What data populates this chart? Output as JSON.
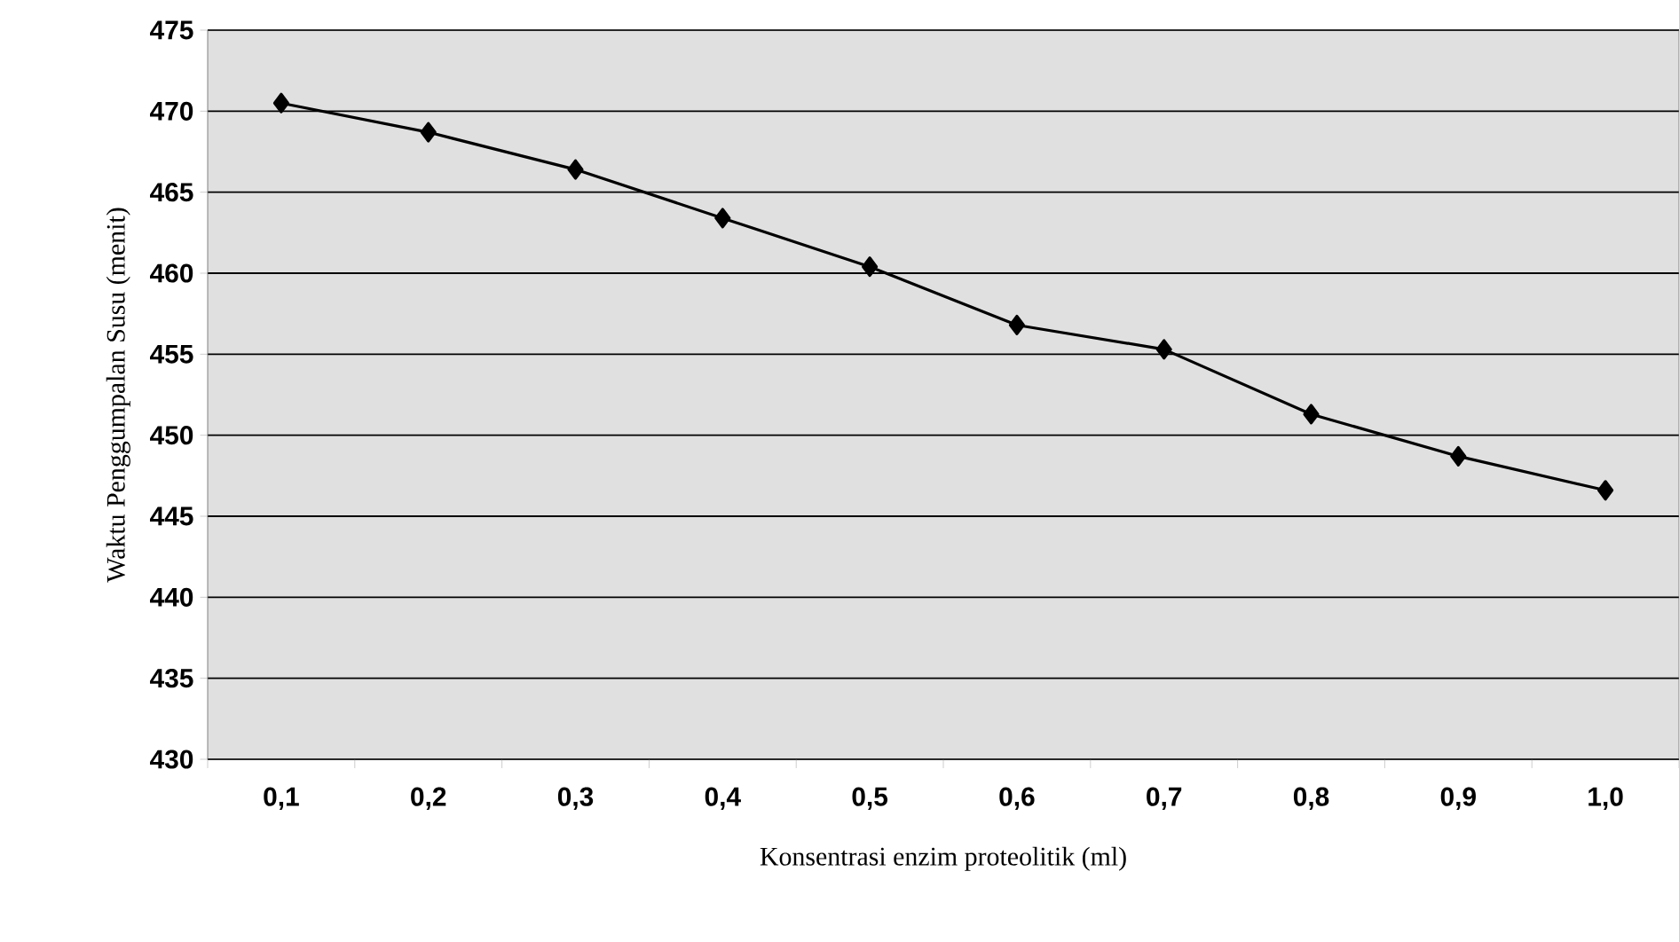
{
  "chart_data": {
    "type": "line",
    "xlabel": "Konsentrasi enzim proteolitik (ml)",
    "ylabel": "Waktu Penggumpalan Susu (menit)",
    "categories": [
      "0,1",
      "0,2",
      "0,3",
      "0,4",
      "0,5",
      "0,6",
      "0,7",
      "0,8",
      "0,9",
      "1,0"
    ],
    "series": [
      {
        "color": "#000000",
        "values": [
          470.5,
          468.7,
          466.4,
          463.4,
          460.4,
          456.8,
          455.3,
          451.3,
          448.7,
          446.6
        ]
      }
    ],
    "ylim": [
      430,
      475
    ],
    "yticks": [
      430,
      435,
      440,
      445,
      450,
      455,
      460,
      465,
      470,
      475
    ],
    "grid": "y",
    "marker": "diamond",
    "line_style": "solid"
  }
}
